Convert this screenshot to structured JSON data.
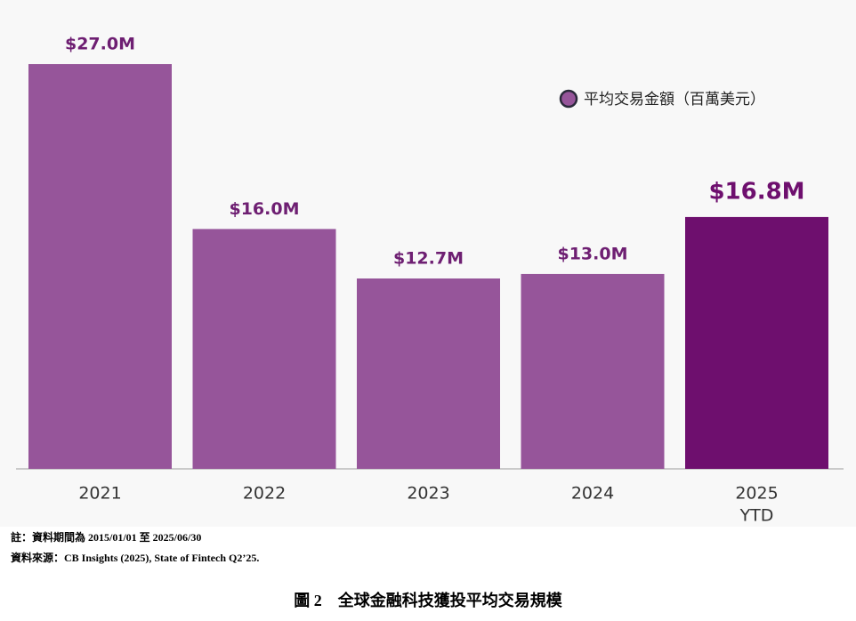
{
  "chart_data": {
    "type": "bar",
    "categories": [
      "2021",
      "2022",
      "2023",
      "2024",
      [
        "2025",
        "YTD"
      ]
    ],
    "series": [
      {
        "name": "平均交易金額（百萬美元）",
        "colors": [
          "#96559a",
          "#96559a",
          "#96559a",
          "#96559a",
          "#6e0f6e"
        ],
        "values": [
          27.0,
          16.0,
          12.7,
          13.0,
          16.8
        ],
        "value_labels": [
          "$27.0M",
          "$16.0M",
          "$12.7M",
          "$13.0M",
          "$16.8M"
        ]
      }
    ],
    "ylim": [
      0,
      30
    ],
    "legend": "upper right",
    "notes": [
      "註：資料期間為 2015/01/01 至 2025/06/30",
      "資料來源：CB Insights (2025), State of Fintech Q2’25."
    ],
    "caption": "圖 2　全球金融科技獲投平均交易規模"
  }
}
